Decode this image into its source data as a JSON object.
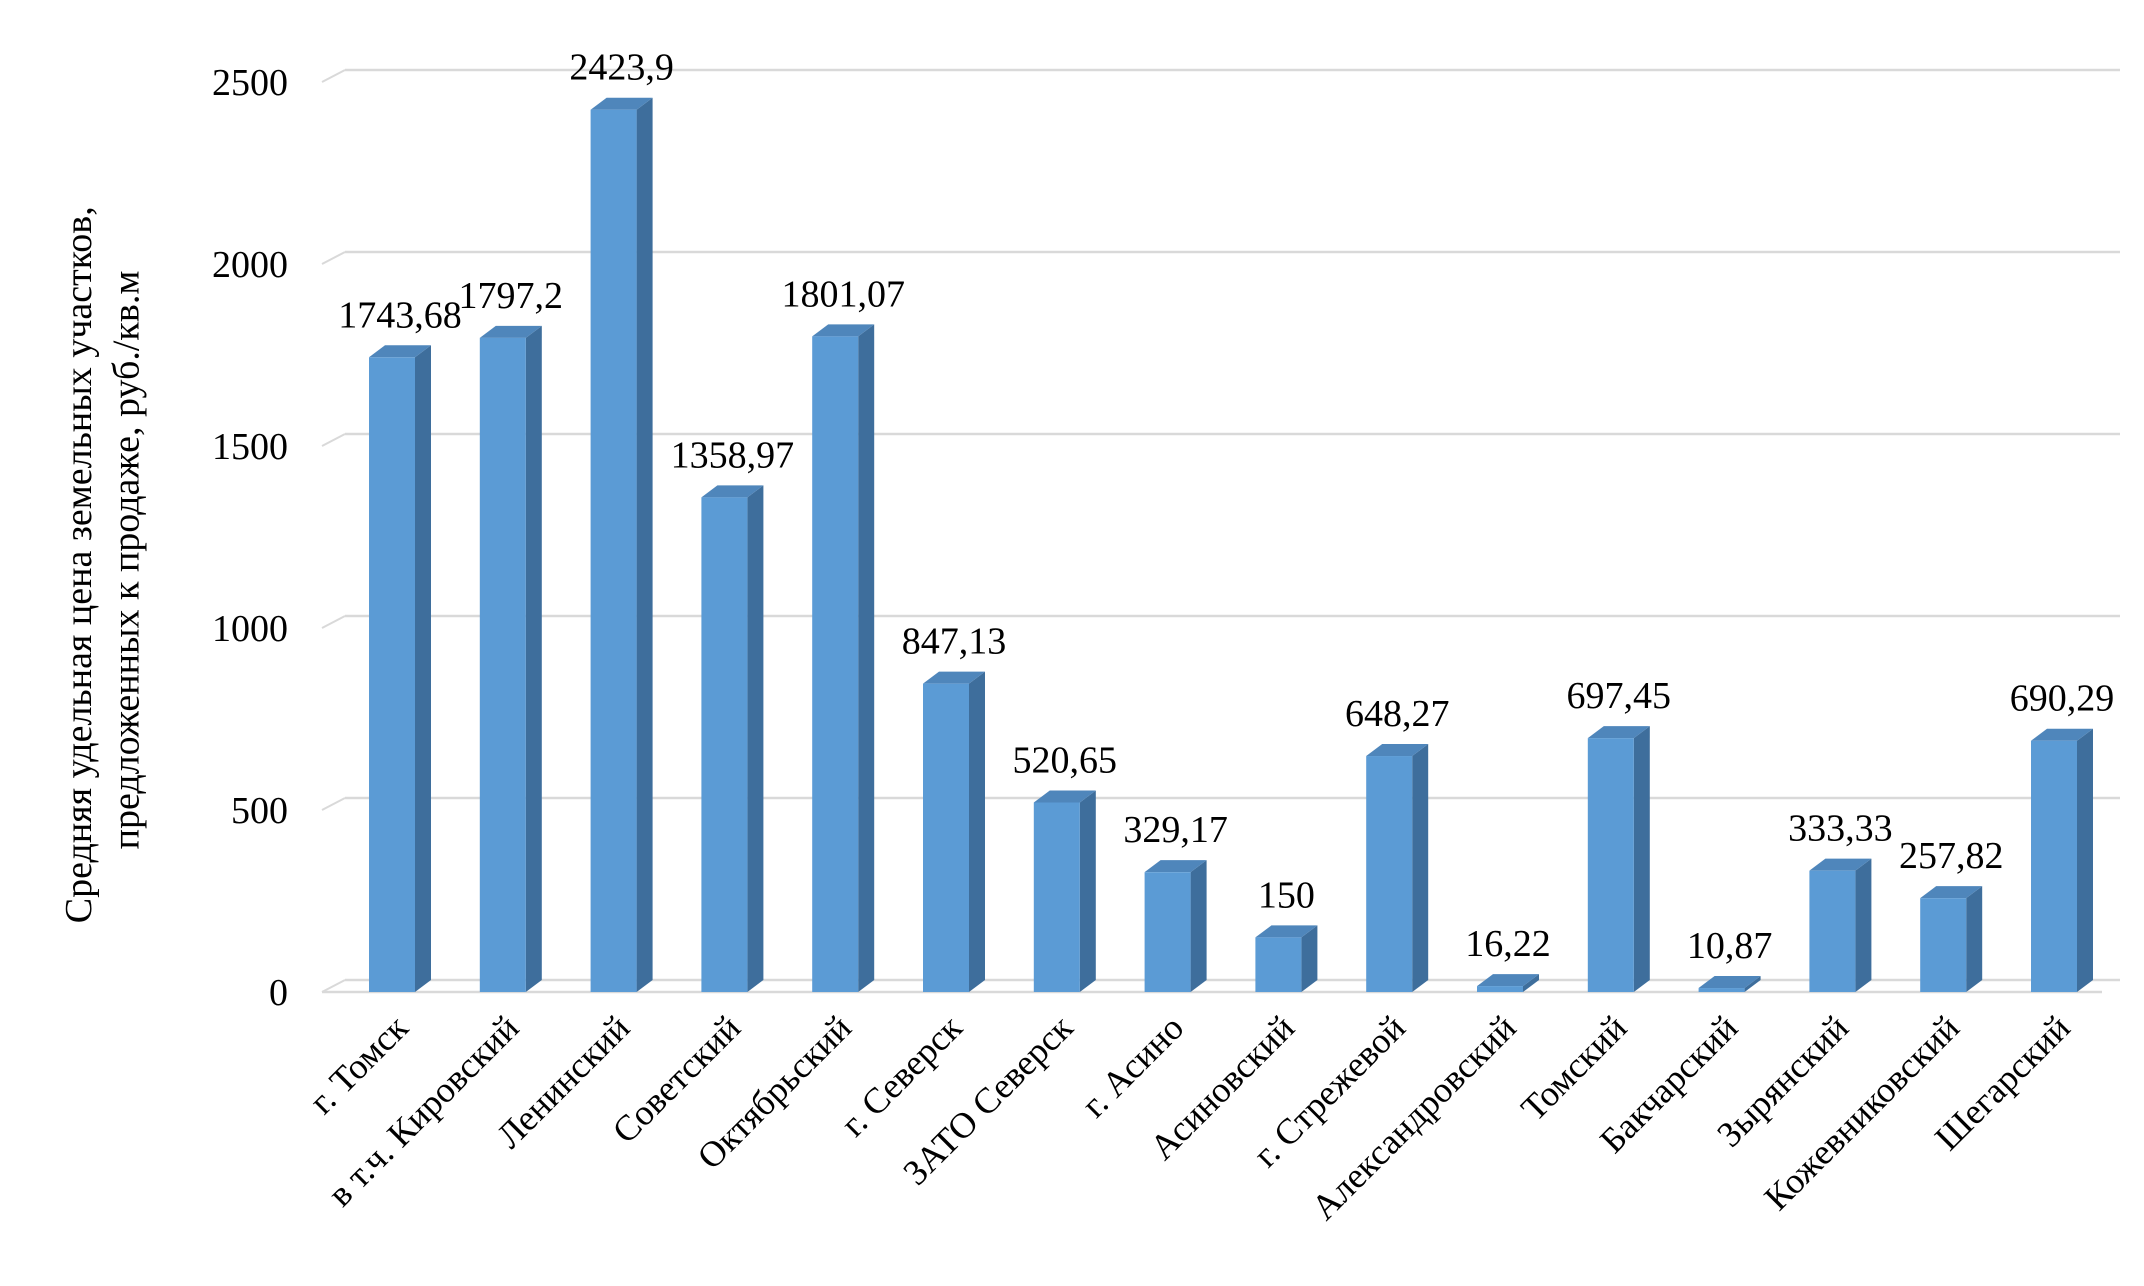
{
  "chart_data": {
    "type": "bar",
    "title": "",
    "xlabel": "",
    "ylabel_lines": [
      "Средняя удельная цена земельных участков,",
      "предложенных к продаже, руб./кв.м"
    ],
    "ylim": [
      0,
      2500
    ],
    "yticks": [
      0,
      500,
      1000,
      1500,
      2000,
      2500
    ],
    "grid": true,
    "legend": "none",
    "style": "3d-column",
    "colors": {
      "bar_front": "#5b9bd5",
      "bar_side": "#3e6e9c",
      "bar_top": "#4f86bb",
      "grid": "#d9d9d9"
    },
    "categories": [
      "г. Томск",
      "в т.ч. Кировский",
      "Ленинский",
      "Советский",
      "Октябрьский",
      "г. Северск",
      "ЗАТО Северск",
      "г. Асино",
      "Асиновский",
      "г. Стрежевой",
      "Александровский",
      "Томский",
      "Бакчарский",
      "Зырянский",
      "Кожевниковский",
      "Шегарский"
    ],
    "values": [
      1743.68,
      1797.2,
      2423.9,
      1358.97,
      1801.07,
      847.13,
      520.65,
      329.17,
      150,
      648.27,
      16.22,
      697.45,
      10.87,
      333.33,
      257.82,
      690.29
    ],
    "data_labels": [
      "1743,68",
      "1797,2",
      "2423,9",
      "1358,97",
      "1801,07",
      "847,13",
      "520,65",
      "329,17",
      "150",
      "648,27",
      "16,22",
      "697,45",
      "10,87",
      "333,33",
      "257,82",
      "690,29"
    ]
  }
}
